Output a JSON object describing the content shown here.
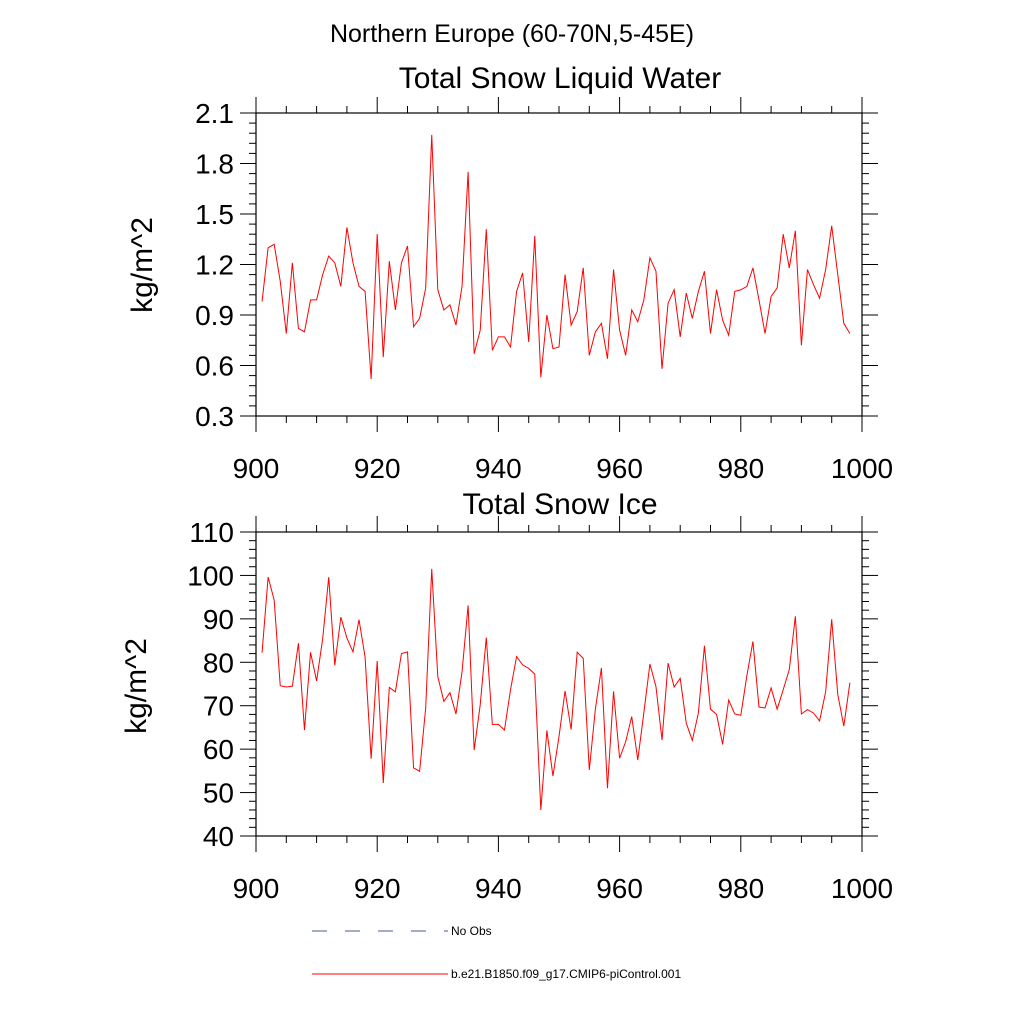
{
  "suptitle": "Northern Europe (60-70N,5-45E)",
  "legend": {
    "no_obs": "No Obs",
    "model": "b.e21.B1850.f09_g17.CMIP6-piControl.001",
    "no_obs_color": "#4a5a9a",
    "model_color": "#ff0000"
  },
  "chart_data": [
    {
      "type": "line",
      "title": "Total Snow Liquid Water",
      "xlabel": "",
      "ylabel": "kg/m^2",
      "xlim": [
        900,
        1000
      ],
      "ylim": [
        0.3,
        2.1
      ],
      "xticks": [
        900,
        920,
        940,
        960,
        980,
        1000
      ],
      "xtick_labels": [
        "900",
        "920",
        "940",
        "960",
        "980",
        "1000"
      ],
      "yticks": [
        0.3,
        0.6,
        0.9,
        1.2,
        1.5,
        1.8,
        2.1
      ],
      "ytick_labels": [
        "0.3",
        "0.6",
        "0.9",
        "1.2",
        "1.5",
        "1.8",
        "2.1"
      ],
      "series": [
        {
          "name": "b.e21.B1850.f09_g17.CMIP6-piControl.001",
          "color": "#ff0000",
          "x_start": 901,
          "values": [
            0.98,
            1.3,
            1.32,
            1.1,
            0.79,
            1.21,
            0.82,
            0.8,
            0.99,
            0.99,
            1.14,
            1.25,
            1.21,
            1.07,
            1.42,
            1.21,
            1.07,
            1.04,
            0.52,
            1.38,
            0.65,
            1.22,
            0.93,
            1.21,
            1.31,
            0.83,
            0.88,
            1.06,
            1.97,
            1.05,
            0.93,
            0.96,
            0.84,
            1.07,
            1.75,
            0.67,
            0.81,
            1.41,
            0.69,
            0.77,
            0.77,
            0.71,
            1.04,
            1.15,
            0.74,
            1.37,
            0.53,
            0.9,
            0.7,
            0.71,
            1.14,
            0.84,
            0.92,
            1.18,
            0.66,
            0.8,
            0.85,
            0.64,
            1.17,
            0.81,
            0.66,
            0.93,
            0.86,
            0.99,
            1.24,
            1.16,
            0.58,
            0.97,
            1.05,
            0.77,
            1.03,
            0.88,
            1.04,
            1.16,
            0.79,
            1.05,
            0.87,
            0.78,
            1.04,
            1.05,
            1.07,
            1.18,
            0.99,
            0.79,
            1.01,
            1.06,
            1.38,
            1.18,
            1.4,
            0.72,
            1.17,
            1.08,
            1.0,
            1.17,
            1.43,
            1.14,
            0.85,
            0.79
          ]
        }
      ]
    },
    {
      "type": "line",
      "title": "Total Snow Ice",
      "xlabel": "",
      "ylabel": "kg/m^2",
      "xlim": [
        900,
        1000
      ],
      "ylim": [
        40,
        110
      ],
      "xticks": [
        900,
        920,
        940,
        960,
        980,
        1000
      ],
      "xtick_labels": [
        "900",
        "920",
        "940",
        "960",
        "980",
        "1000"
      ],
      "yticks": [
        40,
        50,
        60,
        70,
        80,
        90,
        100,
        110
      ],
      "ytick_labels": [
        "40",
        "50",
        "60",
        "70",
        "80",
        "90",
        "100",
        "110"
      ],
      "series": [
        {
          "name": "b.e21.B1850.f09_g17.CMIP6-piControl.001",
          "color": "#ff0000",
          "x_start": 901,
          "values": [
            82.2,
            99.6,
            94.3,
            74.6,
            74.3,
            74.5,
            84.4,
            64.4,
            82.3,
            75.7,
            85.4,
            99.6,
            79.3,
            90.4,
            85.6,
            82.4,
            89.8,
            81.2,
            57.8,
            80.3,
            52.2,
            74.2,
            73.2,
            82.0,
            82.4,
            55.7,
            54.9,
            69.5,
            101.5,
            76.7,
            71.0,
            73.0,
            68.1,
            77.8,
            93.1,
            59.8,
            70.2,
            85.7,
            65.7,
            65.7,
            64.4,
            73.7,
            81.3,
            79.4,
            78.6,
            77.3,
            46.0,
            64.3,
            53.8,
            62.9,
            73.4,
            64.5,
            82.3,
            80.9,
            55.2,
            69.2,
            78.7,
            51.0,
            73.3,
            57.9,
            61.7,
            67.5,
            57.5,
            68.4,
            79.6,
            74.4,
            62.1,
            79.8,
            74.3,
            76.3,
            66.0,
            62.0,
            68.3,
            83.8,
            69.2,
            68.0,
            61.1,
            71.3,
            68.1,
            67.8,
            76.9,
            84.8,
            69.7,
            69.5,
            74.1,
            69.2,
            73.7,
            78.3,
            90.6,
            68.1,
            69.1,
            68.3,
            66.5,
            73.2,
            89.9,
            72.6,
            65.3,
            75.3
          ]
        }
      ]
    }
  ]
}
